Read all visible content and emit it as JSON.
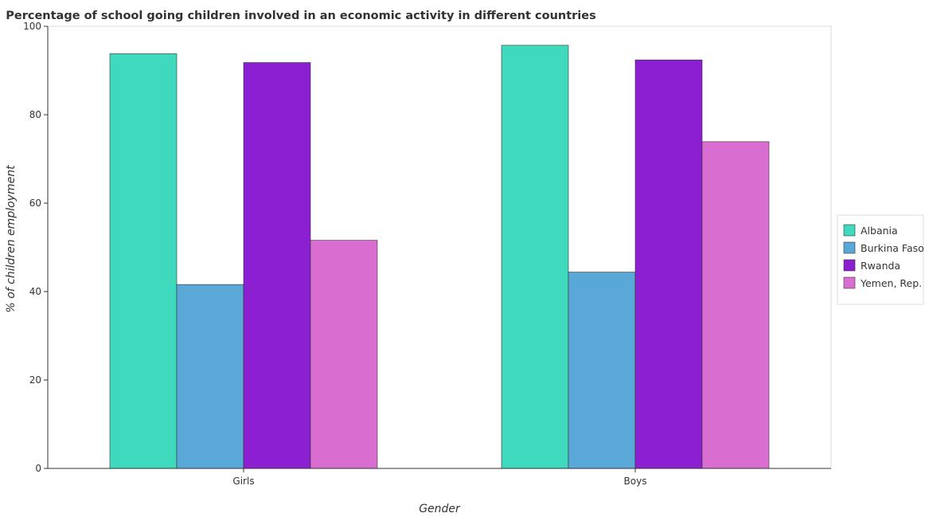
{
  "chart_data": {
    "type": "bar",
    "title": "Percentage of school going children involved in an economic activity in different countries",
    "xlabel": "Gender",
    "ylabel": "% of children employment",
    "categories": [
      "Girls",
      "Boys"
    ],
    "ylim": [
      0,
      100
    ],
    "yticks": [
      0,
      20,
      40,
      60,
      80,
      100
    ],
    "grid": false,
    "legend_position": "right",
    "series": [
      {
        "name": "Albania",
        "color": "#3fd9bd",
        "values": [
          93.8,
          95.7
        ]
      },
      {
        "name": "Burkina Faso",
        "color": "#5aa8d8",
        "values": [
          41.6,
          44.4
        ]
      },
      {
        "name": "Rwanda",
        "color": "#8c1fd2",
        "values": [
          91.8,
          92.4
        ]
      },
      {
        "name": "Yemen, Rep.",
        "color": "#d96ed0",
        "values": [
          51.6,
          73.9
        ]
      }
    ]
  }
}
